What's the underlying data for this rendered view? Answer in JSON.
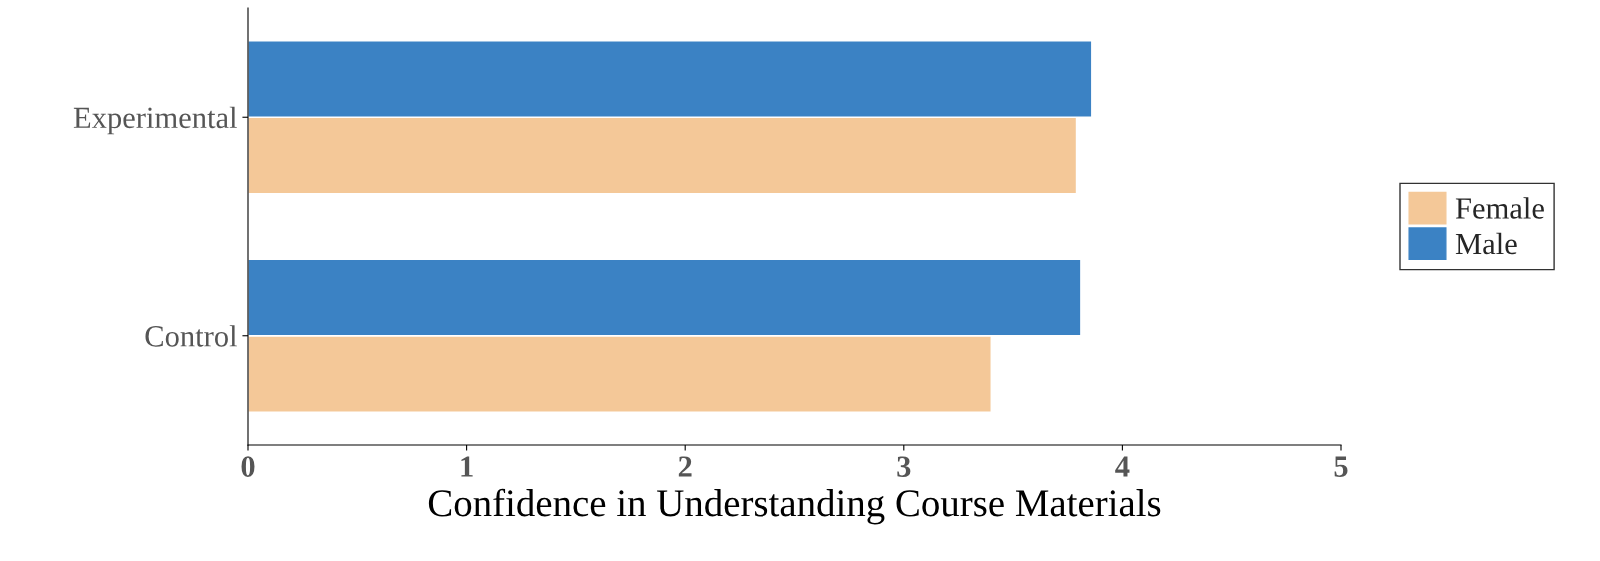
{
  "chart_data": {
    "type": "bar",
    "orientation": "horizontal",
    "xlabel": "Confidence in Understanding Course Materials",
    "categories": [
      "Experimental",
      "Control"
    ],
    "series": [
      {
        "name": "Female",
        "color": "#f4c898",
        "values": [
          3.79,
          3.4
        ]
      },
      {
        "name": "Male",
        "color": "#3b82c4",
        "values": [
          3.86,
          3.81
        ]
      }
    ],
    "xlim": [
      0,
      5
    ],
    "xticks": [
      0,
      1,
      2,
      3,
      4,
      5
    ],
    "grid": false,
    "legend": "right"
  }
}
